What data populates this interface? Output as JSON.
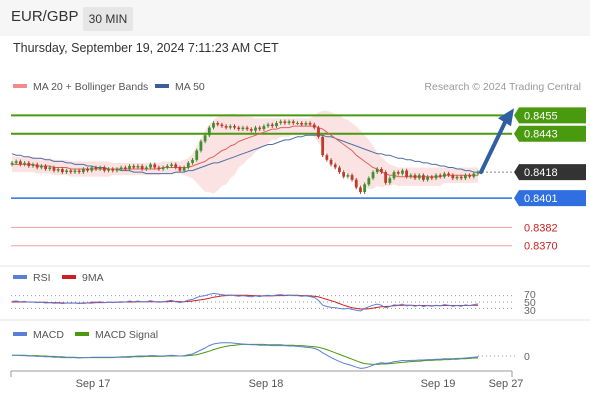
{
  "header": {
    "pair": "EUR/GBP",
    "timeframe": "30 MIN",
    "datetime": "Thursday, September 19, 2024 7:11:23 AM CET"
  },
  "colors": {
    "ma20": "#e06060",
    "bollinger_fill": "#fbdede",
    "ma50": "#4e6fa8",
    "resistance": "#4a9a10",
    "support": "#2f6fe0",
    "weak_support": "#f0a0a0",
    "arrow": "#2f5fa0",
    "candle_up": "#3e8f2e",
    "candle_down": "#c0392b",
    "rsi": "#5b7fd8",
    "rsi_ma": "#cc1f1f",
    "macd": "#5b7fd8",
    "macd_signal": "#4a9a10"
  },
  "chart_data": [
    {
      "type": "candlestick",
      "title": "",
      "credit": "Research © 2024 Trading Central",
      "legend": [
        {
          "name": "MA 20 + Bollinger Bands",
          "color": "#f28c8c"
        },
        {
          "name": "MA 50",
          "color": "#3a5f9e"
        }
      ],
      "legend_position": "top-left",
      "ylim": [
        0.8362,
        0.8465
      ],
      "x_ticks": [
        "Sep 17",
        "Sep 18",
        "Sep 19",
        "Sep 27"
      ],
      "levels": [
        {
          "value": 0.8455,
          "label": "0.8455",
          "kind": "resistance",
          "color": "#4a9a10"
        },
        {
          "value": 0.8443,
          "label": "0.8443",
          "kind": "resistance",
          "color": "#4a9a10"
        },
        {
          "value": 0.8418,
          "label": "0.8418",
          "kind": "last",
          "color": "#333333"
        },
        {
          "value": 0.8401,
          "label": "0.8401",
          "kind": "support",
          "color": "#2f6fe0"
        },
        {
          "value": 0.8382,
          "label": "0.8382",
          "kind": "weak",
          "color": "#cc1f1f"
        },
        {
          "value": 0.837,
          "label": "0.8370",
          "kind": "weak",
          "color": "#cc1f1f"
        }
      ],
      "close": [
        0.8424,
        0.8425,
        0.8423,
        0.8424,
        0.8422,
        0.8423,
        0.8421,
        0.8422,
        0.842,
        0.8421,
        0.8419,
        0.842,
        0.8418,
        0.8419,
        0.8418,
        0.8419,
        0.8418,
        0.842,
        0.8419,
        0.8421,
        0.842,
        0.8421,
        0.8419,
        0.842,
        0.8419,
        0.842,
        0.8421,
        0.842,
        0.8422,
        0.8421,
        0.8422,
        0.842,
        0.8421,
        0.8423,
        0.8421,
        0.842,
        0.8421,
        0.8422,
        0.8423,
        0.8421,
        0.8419,
        0.8421,
        0.8424,
        0.8426,
        0.8432,
        0.8438,
        0.8442,
        0.8447,
        0.845,
        0.8449,
        0.8448,
        0.8447,
        0.8448,
        0.8447,
        0.8446,
        0.8447,
        0.8446,
        0.8445,
        0.8447,
        0.8446,
        0.8448,
        0.8449,
        0.8448,
        0.845,
        0.8451,
        0.845,
        0.8451,
        0.845,
        0.845,
        0.8449,
        0.845,
        0.8449,
        0.8447,
        0.8441,
        0.8429,
        0.8426,
        0.8423,
        0.8421,
        0.8418,
        0.8415,
        0.8416,
        0.8413,
        0.8408,
        0.8405,
        0.841,
        0.8414,
        0.8418,
        0.842,
        0.8418,
        0.8411,
        0.8414,
        0.8418,
        0.8417,
        0.8419,
        0.8415,
        0.8416,
        0.8414,
        0.8416,
        0.8413,
        0.8415,
        0.8414,
        0.8416,
        0.8415,
        0.8417,
        0.8416,
        0.8414,
        0.8415,
        0.8414,
        0.8416,
        0.8415,
        0.8417,
        0.8418
      ],
      "ma20": [
        0.8423,
        0.8423,
        0.8423,
        0.8423,
        0.8423,
        0.8423,
        0.8422,
        0.8422,
        0.8422,
        0.8422,
        0.8421,
        0.8421,
        0.8421,
        0.8421,
        0.842,
        0.842,
        0.842,
        0.842,
        0.842,
        0.842,
        0.842,
        0.842,
        0.842,
        0.842,
        0.842,
        0.842,
        0.842,
        0.842,
        0.842,
        0.842,
        0.842,
        0.842,
        0.842,
        0.842,
        0.842,
        0.842,
        0.8421,
        0.8421,
        0.8421,
        0.8421,
        0.8421,
        0.8421,
        0.8421,
        0.8422,
        0.8423,
        0.8424,
        0.8425,
        0.8427,
        0.8428,
        0.843,
        0.8432,
        0.8433,
        0.8435,
        0.8436,
        0.8438,
        0.8439,
        0.844,
        0.8441,
        0.8442,
        0.8443,
        0.8444,
        0.8445,
        0.8446,
        0.8446,
        0.8447,
        0.8447,
        0.8447,
        0.8448,
        0.8448,
        0.8448,
        0.8448,
        0.8448,
        0.8448,
        0.8447,
        0.8446,
        0.8444,
        0.8442,
        0.844,
        0.8438,
        0.8436,
        0.8434,
        0.8432,
        0.8429,
        0.8427,
        0.8425,
        0.8423,
        0.8421,
        0.842,
        0.8418,
        0.8417,
        0.8416,
        0.8416,
        0.8415,
        0.8415,
        0.8415,
        0.8415,
        0.8415,
        0.8415,
        0.8415,
        0.8415,
        0.8415,
        0.8415,
        0.8415,
        0.8416,
        0.8416,
        0.8416,
        0.8416,
        0.8416,
        0.8416,
        0.8416,
        0.8416,
        0.8416
      ],
      "bb_upper": [
        0.8428,
        0.8428,
        0.8428,
        0.8428,
        0.8428,
        0.8428,
        0.8427,
        0.8427,
        0.8427,
        0.8427,
        0.8426,
        0.8426,
        0.8426,
        0.8426,
        0.8425,
        0.8425,
        0.8425,
        0.8425,
        0.8425,
        0.8425,
        0.8425,
        0.8425,
        0.8425,
        0.8425,
        0.8424,
        0.8424,
        0.8424,
        0.8424,
        0.8424,
        0.8424,
        0.8424,
        0.8424,
        0.8424,
        0.8424,
        0.8424,
        0.8424,
        0.8425,
        0.8425,
        0.8425,
        0.8425,
        0.8425,
        0.8426,
        0.8427,
        0.843,
        0.8435,
        0.844,
        0.8445,
        0.8449,
        0.8452,
        0.8454,
        0.8455,
        0.8456,
        0.8456,
        0.8456,
        0.8455,
        0.8455,
        0.8454,
        0.8454,
        0.8453,
        0.8453,
        0.8453,
        0.8453,
        0.8453,
        0.8453,
        0.8453,
        0.8453,
        0.8453,
        0.8453,
        0.8453,
        0.8453,
        0.8453,
        0.8453,
        0.8455,
        0.8457,
        0.8458,
        0.8458,
        0.8457,
        0.8456,
        0.8455,
        0.8453,
        0.8452,
        0.845,
        0.8448,
        0.8445,
        0.8442,
        0.8439,
        0.8435,
        0.8431,
        0.8428,
        0.8425,
        0.8423,
        0.8422,
        0.8421,
        0.8421,
        0.8421,
        0.8421,
        0.8421,
        0.8421,
        0.8421,
        0.8421,
        0.8421,
        0.8421,
        0.8421,
        0.8421,
        0.8421,
        0.8421,
        0.8421,
        0.8421,
        0.8421,
        0.8421,
        0.8421,
        0.8421
      ],
      "bb_lower": [
        0.8418,
        0.8418,
        0.8418,
        0.8418,
        0.8418,
        0.8418,
        0.8417,
        0.8417,
        0.8417,
        0.8417,
        0.8416,
        0.8416,
        0.8416,
        0.8416,
        0.8415,
        0.8415,
        0.8415,
        0.8415,
        0.8415,
        0.8415,
        0.8415,
        0.8415,
        0.8415,
        0.8415,
        0.8416,
        0.8416,
        0.8416,
        0.8416,
        0.8416,
        0.8416,
        0.8416,
        0.8416,
        0.8416,
        0.8416,
        0.8416,
        0.8416,
        0.8417,
        0.8417,
        0.8417,
        0.8417,
        0.8417,
        0.8416,
        0.8415,
        0.8414,
        0.8411,
        0.8408,
        0.8405,
        0.8405,
        0.8404,
        0.8406,
        0.8409,
        0.841,
        0.8414,
        0.8416,
        0.8421,
        0.8423,
        0.8426,
        0.8428,
        0.8431,
        0.8433,
        0.8435,
        0.8437,
        0.8439,
        0.8439,
        0.8441,
        0.8441,
        0.8441,
        0.8443,
        0.8443,
        0.8443,
        0.8443,
        0.8443,
        0.8441,
        0.8437,
        0.8434,
        0.843,
        0.8427,
        0.8424,
        0.8421,
        0.8419,
        0.8416,
        0.8414,
        0.841,
        0.8409,
        0.8408,
        0.8407,
        0.8407,
        0.8409,
        0.8408,
        0.8409,
        0.8409,
        0.841,
        0.8409,
        0.8409,
        0.8409,
        0.8409,
        0.8409,
        0.8409,
        0.8409,
        0.8409,
        0.8409,
        0.8409,
        0.8409,
        0.8411,
        0.8411,
        0.8411,
        0.8411,
        0.8411,
        0.8411,
        0.8411,
        0.8411,
        0.8411
      ],
      "ma50": [
        0.843,
        0.8429,
        0.8429,
        0.8428,
        0.8428,
        0.8427,
        0.8427,
        0.8427,
        0.8426,
        0.8426,
        0.8425,
        0.8425,
        0.8425,
        0.8424,
        0.8424,
        0.8423,
        0.8423,
        0.8423,
        0.8422,
        0.8422,
        0.8421,
        0.8421,
        0.8421,
        0.842,
        0.842,
        0.842,
        0.8419,
        0.8419,
        0.8419,
        0.8418,
        0.8418,
        0.8418,
        0.8417,
        0.8417,
        0.8417,
        0.8417,
        0.8417,
        0.8417,
        0.8417,
        0.8418,
        0.8418,
        0.8418,
        0.8419,
        0.8419,
        0.842,
        0.8421,
        0.8422,
        0.8423,
        0.8424,
        0.8424,
        0.8425,
        0.8426,
        0.8427,
        0.8428,
        0.8429,
        0.843,
        0.8431,
        0.8432,
        0.8433,
        0.8434,
        0.8435,
        0.8436,
        0.8436,
        0.8437,
        0.8438,
        0.8439,
        0.8439,
        0.844,
        0.8441,
        0.8441,
        0.8442,
        0.8442,
        0.8442,
        0.8442,
        0.8442,
        0.8441,
        0.8441,
        0.844,
        0.8439,
        0.8438,
        0.8437,
        0.8436,
        0.8435,
        0.8434,
        0.8433,
        0.8432,
        0.8431,
        0.843,
        0.843,
        0.8429,
        0.8429,
        0.8428,
        0.8427,
        0.8427,
        0.8426,
        0.8426,
        0.8425,
        0.8425,
        0.8424,
        0.8424,
        0.8423,
        0.8423,
        0.8422,
        0.8422,
        0.8421,
        0.8421,
        0.842,
        0.842,
        0.8419,
        0.8419,
        0.8418,
        0.8418
      ],
      "forecast": {
        "from": 0.8418,
        "to": 0.8457
      }
    },
    {
      "type": "line",
      "title": "",
      "legend": [
        {
          "name": "RSI",
          "color": "#5b7fd8"
        },
        {
          "name": "9MA",
          "color": "#cc1f1f"
        }
      ],
      "ylim": [
        0,
        100
      ],
      "y_ticks": [
        "70",
        "50",
        "30"
      ],
      "rsi": [
        52,
        53,
        51,
        52,
        49,
        50,
        48,
        49,
        47,
        48,
        46,
        47,
        45,
        47,
        46,
        47,
        45,
        48,
        47,
        50,
        49,
        51,
        48,
        50,
        48,
        50,
        51,
        50,
        53,
        51,
        53,
        50,
        51,
        54,
        51,
        49,
        51,
        53,
        55,
        51,
        48,
        51,
        56,
        58,
        64,
        68,
        70,
        74,
        77,
        75,
        73,
        71,
        72,
        70,
        68,
        70,
        68,
        66,
        69,
        67,
        70,
        71,
        69,
        72,
        73,
        71,
        72,
        70,
        70,
        68,
        69,
        67,
        64,
        55,
        40,
        36,
        33,
        32,
        30,
        28,
        30,
        27,
        24,
        22,
        30,
        35,
        40,
        43,
        40,
        32,
        36,
        41,
        40,
        43,
        38,
        40,
        37,
        40,
        36,
        39,
        37,
        40,
        38,
        42,
        40,
        37,
        39,
        37,
        41,
        39,
        42,
        44
      ],
      "rsi_ma": [
        50,
        50,
        50,
        50,
        50,
        50,
        49,
        49,
        49,
        48,
        48,
        48,
        47,
        47,
        47,
        47,
        46,
        46,
        47,
        47,
        48,
        48,
        48,
        49,
        49,
        49,
        49,
        50,
        50,
        50,
        51,
        51,
        51,
        51,
        51,
        51,
        51,
        51,
        52,
        52,
        51,
        51,
        52,
        53,
        55,
        57,
        59,
        62,
        65,
        67,
        69,
        70,
        71,
        71,
        71,
        71,
        71,
        70,
        70,
        69,
        69,
        69,
        69,
        70,
        70,
        70,
        71,
        71,
        71,
        70,
        70,
        69,
        68,
        66,
        62,
        58,
        54,
        50,
        45,
        40,
        36,
        32,
        30,
        28,
        28,
        29,
        31,
        33,
        35,
        36,
        37,
        38,
        39,
        40,
        40,
        40,
        39,
        39,
        39,
        39,
        38,
        39,
        38,
        39,
        39,
        39,
        39,
        39,
        39,
        39,
        40,
        40
      ]
    },
    {
      "type": "line",
      "title": "",
      "legend": [
        {
          "name": "MACD",
          "color": "#5b7fd8"
        },
        {
          "name": "MACD Signal",
          "color": "#4a9a10"
        }
      ],
      "y_ticks": [
        "0"
      ],
      "macd": [
        2e-05,
        2e-05,
        1e-05,
        1e-05,
        0.0,
        0.0,
        -1e-05,
        -1e-05,
        -2e-05,
        -2e-05,
        -3e-05,
        -3e-05,
        -4e-05,
        -4e-05,
        -4e-05,
        -4e-05,
        -5e-05,
        -4e-05,
        -4e-05,
        -3e-05,
        -3e-05,
        -3e-05,
        -3e-05,
        -3e-05,
        -3e-05,
        -3e-05,
        -2e-05,
        -2e-05,
        -1e-05,
        -1e-05,
        0.0,
        0.0,
        0.0,
        1e-05,
        1e-05,
        0.0,
        0.0,
        1e-05,
        2e-05,
        1e-05,
        0.0,
        1e-05,
        3e-05,
        5e-05,
        0.0001,
        0.00015,
        0.0002,
        0.00026,
        0.0003,
        0.00032,
        0.00033,
        0.00033,
        0.00033,
        0.00032,
        0.00031,
        0.0003,
        0.00029,
        0.00028,
        0.00028,
        0.00027,
        0.00027,
        0.00027,
        0.00026,
        0.00026,
        0.00026,
        0.00026,
        0.00025,
        0.00025,
        0.00024,
        0.00023,
        0.00022,
        0.00021,
        0.00019,
        0.00015,
        8e-05,
        2e-05,
        -4e-05,
        -9e-05,
        -0.00014,
        -0.00018,
        -0.00021,
        -0.00024,
        -0.00028,
        -0.00031,
        -0.0003,
        -0.00027,
        -0.00023,
        -0.00019,
        -0.00017,
        -0.00018,
        -0.00017,
        -0.00014,
        -0.00013,
        -0.00011,
        -0.00012,
        -0.00011,
        -0.00011,
        -0.0001,
        -0.0001,
        -9e-05,
        -9e-05,
        -8e-05,
        -8e-05,
        -7e-05,
        -7e-05,
        -7e-05,
        -6e-05,
        -6e-05,
        -5e-05,
        -4e-05,
        -3e-05,
        -2e-05
      ],
      "macd_signal": [
        2e-05,
        2e-05,
        2e-05,
        2e-05,
        1e-05,
        1e-05,
        1e-05,
        0.0,
        0.0,
        -1e-05,
        -1e-05,
        -2e-05,
        -2e-05,
        -3e-05,
        -3e-05,
        -3e-05,
        -4e-05,
        -4e-05,
        -4e-05,
        -4e-05,
        -4e-05,
        -4e-05,
        -4e-05,
        -4e-05,
        -4e-05,
        -3e-05,
        -3e-05,
        -3e-05,
        -3e-05,
        -2e-05,
        -2e-05,
        -2e-05,
        -1e-05,
        -1e-05,
        -1e-05,
        -1e-05,
        -1e-05,
        0.0,
        0.0,
        0.0,
        0.0,
        0.0,
        1e-05,
        2e-05,
        3e-05,
        6e-05,
        9e-05,
        0.00012,
        0.00016,
        0.00019,
        0.00022,
        0.00024,
        0.00026,
        0.00027,
        0.00028,
        0.00029,
        0.00029,
        0.00029,
        0.00029,
        0.00029,
        0.00029,
        0.00028,
        0.00028,
        0.00028,
        0.00028,
        0.00027,
        0.00027,
        0.00027,
        0.00026,
        0.00026,
        0.00025,
        0.00024,
        0.00023,
        0.00022,
        0.00019,
        0.00016,
        0.00012,
        8e-05,
        4e-05,
        0.0,
        -4e-05,
        -8e-05,
        -0.00012,
        -0.00016,
        -0.00019,
        -0.0002,
        -0.00021,
        -0.00021,
        -0.0002,
        -0.0002,
        -0.00019,
        -0.00018,
        -0.00017,
        -0.00016,
        -0.00015,
        -0.00014,
        -0.00013,
        -0.00013,
        -0.00012,
        -0.00011,
        -0.00011,
        -0.0001,
        -0.0001,
        -9e-05,
        -9e-05,
        -8e-05,
        -8e-05,
        -7e-05,
        -7e-05,
        -6e-05,
        -5e-05,
        -5e-05
      ]
    }
  ]
}
